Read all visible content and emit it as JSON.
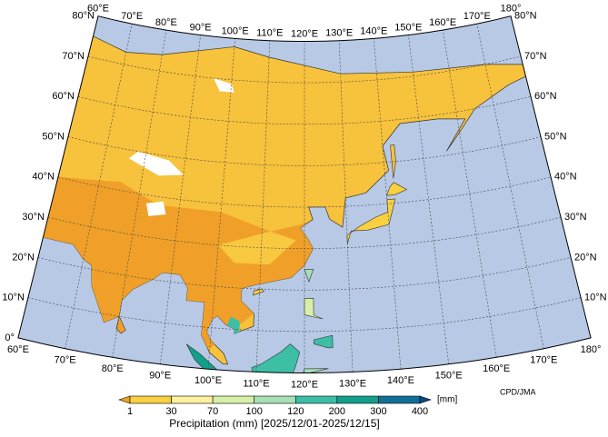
{
  "map": {
    "lon_labels_top": [
      "60°E",
      "70°E",
      "80°E",
      "90°E",
      "100°E",
      "110°E",
      "120°E",
      "130°E",
      "140°E",
      "150°E",
      "160°E",
      "170°E",
      "180°"
    ],
    "lon_labels_bottom": [
      "60°E",
      "70°E",
      "80°E",
      "90°E",
      "100°E",
      "110°E",
      "120°E",
      "130°E",
      "140°E",
      "150°E",
      "160°E",
      "170°E",
      "180°"
    ],
    "lat_labels_left": [
      "0°",
      "10°N",
      "20°N",
      "30°N",
      "40°N",
      "50°N",
      "60°N",
      "70°N",
      "80°N"
    ],
    "lat_labels_right": [
      "10°N",
      "20°N",
      "30°N",
      "40°N",
      "50°N",
      "60°N",
      "70°N",
      "80°N"
    ]
  },
  "colorbar": {
    "levels": [
      1,
      30,
      70,
      100,
      120,
      200,
      300,
      400
    ],
    "colors": [
      "#f0a028",
      "#f8d040",
      "#fdf0a0",
      "#d6f0a8",
      "#a6e0b4",
      "#3cbfa4",
      "#12a08c",
      "#107098",
      "#0a4a80"
    ],
    "unit": "[mm]",
    "title": "Precipitation (mm) [2025/12/01-2025/12/15]"
  },
  "credit": "CPD/JMA"
}
